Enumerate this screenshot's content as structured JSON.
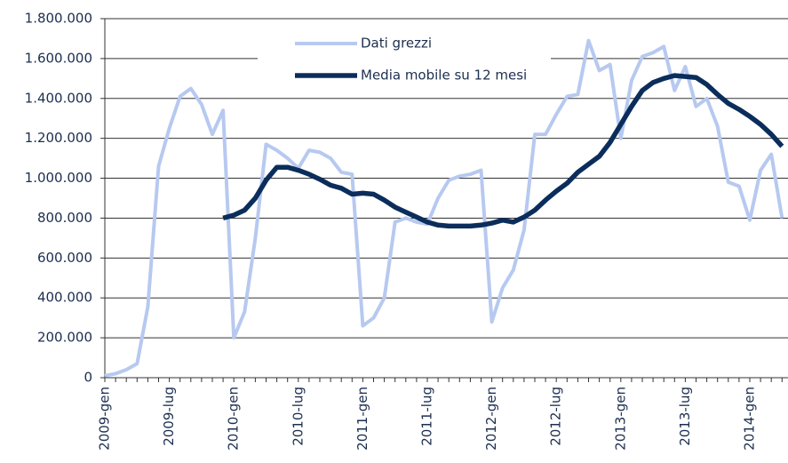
{
  "chart_data": {
    "type": "line",
    "categories": [
      "2009-gen",
      null,
      null,
      null,
      null,
      null,
      "2009-lug",
      null,
      null,
      null,
      null,
      null,
      "2010-gen",
      null,
      null,
      null,
      null,
      null,
      "2010-lug",
      null,
      null,
      null,
      null,
      null,
      "2011-gen",
      null,
      null,
      null,
      null,
      null,
      "2011-lug",
      null,
      null,
      null,
      null,
      null,
      "2012-gen",
      null,
      null,
      null,
      null,
      null,
      "2012-lug",
      null,
      null,
      null,
      null,
      null,
      "2013-gen",
      null,
      null,
      null,
      null,
      null,
      "2013-lug",
      null,
      null,
      null,
      null,
      null,
      "2014-gen",
      null,
      null,
      null
    ],
    "series": [
      {
        "name": "Dati grezzi",
        "color": "#b7c9f0",
        "values": [
          10000,
          20000,
          40000,
          70000,
          355000,
          1060000,
          1250000,
          1410000,
          1450000,
          1370000,
          1220000,
          1340000,
          200000,
          330000,
          700000,
          1170000,
          1140000,
          1100000,
          1050000,
          1140000,
          1130000,
          1100000,
          1030000,
          1020000,
          260000,
          300000,
          400000,
          780000,
          800000,
          780000,
          770000,
          900000,
          990000,
          1010000,
          1020000,
          1040000,
          280000,
          450000,
          540000,
          740000,
          1220000,
          1220000,
          1320000,
          1410000,
          1420000,
          1690000,
          1540000,
          1570000,
          1200000,
          1490000,
          1610000,
          1630000,
          1660000,
          1440000,
          1560000,
          1360000,
          1400000,
          1260000,
          980000,
          960000,
          790000,
          1040000,
          1120000,
          800000
        ]
      },
      {
        "name": "Media mobile su 12 mesi",
        "color": "#0b2d5b",
        "values": [
          null,
          null,
          null,
          null,
          null,
          null,
          null,
          null,
          null,
          null,
          null,
          800000,
          815000,
          840000,
          900000,
          990000,
          1055000,
          1055000,
          1040000,
          1020000,
          995000,
          965000,
          950000,
          920000,
          925000,
          920000,
          890000,
          855000,
          830000,
          805000,
          780000,
          765000,
          760000,
          760000,
          760000,
          765000,
          775000,
          790000,
          780000,
          805000,
          840000,
          890000,
          935000,
          975000,
          1030000,
          1070000,
          1110000,
          1180000,
          1270000,
          1360000,
          1440000,
          1480000,
          1500000,
          1515000,
          1510000,
          1505000,
          1470000,
          1420000,
          1375000,
          1345000,
          1310000,
          1270000,
          1220000,
          1160000
        ]
      }
    ],
    "ylim": [
      0,
      1800000
    ],
    "yticks": [
      0,
      {
        "value": 200000,
        "label": "200.000"
      },
      {
        "value": 400000,
        "label": "400.000"
      },
      {
        "value": 600000,
        "label": "600.000"
      },
      {
        "value": 800000,
        "label": "800.000"
      },
      {
        "value": 1000000,
        "label": "1.000.000"
      },
      {
        "value": 1200000,
        "label": "1.200.000"
      },
      {
        "value": 1400000,
        "label": "1.400.000"
      },
      {
        "value": 1600000,
        "label": "1.600.000"
      },
      {
        "value": 1800000,
        "label": "1.800.000"
      }
    ],
    "grid": true,
    "legend": "top"
  }
}
